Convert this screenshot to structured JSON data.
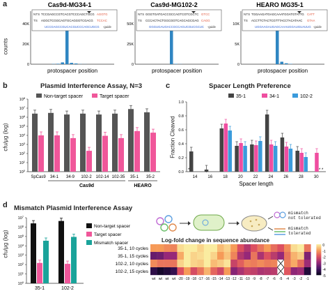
{
  "figure": {
    "panel_labels": [
      "a",
      "b",
      "c",
      "d"
    ],
    "panel_a": {
      "ylabel": "counts",
      "xlabel": "protospacer position",
      "subplots": [
        {
          "title": "Cas9d-MG34-1",
          "nts_label": "NTS",
          "ts_label": "TS",
          "nts_seq": "TCCGAGCCGTCACGTCCCAGCTGCG",
          "nts_tail": "AGGTG",
          "ts_seq": "AGGCTCGGCAGTGCAGGGTCGACG",
          "ts_tail": "TCCAC",
          "guide_seq": "UCCGAGCCGUCACGUCCCAGCUGCG",
          "guide_label": "-guide",
          "yticks": [
            "40K",
            "20K",
            "0"
          ]
        },
        {
          "title": "Cas9d-MG102-2",
          "nts_label": "NTS",
          "ts_label": "TS",
          "nts_seq": "GGGTGATGACCGCCAGTCGTCGCTC",
          "nts_tail": "GTCC",
          "ts_seq": "CCCACTACTGGCGGTCAGCAGCGAG",
          "ts_tail": "CAGG",
          "guide_seq": "GGGUGAUGACCGCCAGUCGUCGCUC",
          "guide_label": "-guide",
          "yticks": [
            "50K",
            "25K",
            "0"
          ]
        },
        {
          "title": "HEARO MG35-1",
          "nts_label": "NTS",
          "ts_label": "TS",
          "nts_seq": "TGGAAGATGAGCAAATGGATGTATTG",
          "nts_tail": "CATT",
          "ts_seq": "ACCTTCTACTCGTTTACCTACATAAC",
          "ts_tail": "GTAA",
          "guide_seq": "UGGAAGAUGAGCAAAUGGAUGUAUUG",
          "guide_label": "-guide",
          "yticks": [
            "10K",
            "5K",
            "0"
          ]
        }
      ]
    },
    "panel_b": {
      "title": "Plasmid Interference Assay, N=3",
      "ylabel": "cfu/μg (log)",
      "legend": [
        "Non-target spacer",
        "Target spacer"
      ],
      "groups": [
        "Cas9d",
        "HEARO"
      ]
    },
    "panel_c": {
      "title": "Spacer Length Preference",
      "ylabel": "Fraction Cleaved",
      "xlabel": "Spacer length",
      "legend": [
        "35-1",
        "34-1",
        "102-2"
      ]
    },
    "panel_d": {
      "title": "Mismatch Plasmid Interference Assay",
      "ylabel": "cfu/μg (log)",
      "legend": [
        "Non-target spacer",
        "Target spacer",
        "Mismatch spacer"
      ],
      "schematic_labels": {
        "mismatch_not_tolerated": "mismatch\nnot tolerated",
        "mismatch_tolerated": "mismatch\ntolerated"
      },
      "heatmap": {
        "title": "Log-fold change in sequence abundance",
        "rows": [
          "35-1, 10 cycles",
          "35-1, 15 cycles",
          "102-2, 10 cycles",
          "102-2, 15 cycles"
        ],
        "cols": [
          "wt",
          "wt",
          "wt",
          "wt",
          "-20",
          "-19",
          "-18",
          "-17",
          "-16",
          "-15",
          "-14",
          "-13",
          "-12",
          "-11",
          "-10",
          "-9",
          "-8",
          "-7",
          "-6",
          "-5",
          "-4",
          "-3",
          "-2",
          "-1"
        ],
        "colorbar_ticks": [
          "0",
          "-1",
          "-2",
          "-3",
          "-4",
          "-5"
        ]
      }
    }
  },
  "chart_data": [
    {
      "type": "bar",
      "title": "Cas9d-MG34-1",
      "xlabel": "protospacer position",
      "ylabel": "counts",
      "x": [
        1,
        2,
        3,
        4,
        5,
        6,
        7,
        8,
        9,
        10
      ],
      "values": [
        0,
        300,
        500,
        2000,
        46000,
        1500,
        800,
        200,
        100,
        0
      ],
      "ylim": [
        0,
        48000
      ]
    },
    {
      "type": "bar",
      "title": "Cas9d-MG102-2",
      "xlabel": "protospacer position",
      "ylabel": "counts",
      "x": [
        1,
        2,
        3,
        4,
        5,
        6,
        7,
        8,
        9,
        10
      ],
      "values": [
        0,
        0,
        0,
        0,
        60000,
        500,
        200,
        0,
        0,
        0
      ],
      "ylim": [
        0,
        60000
      ]
    },
    {
      "type": "bar",
      "title": "HEARO MG35-1",
      "xlabel": "protospacer position",
      "ylabel": "counts",
      "x": [
        1,
        2,
        3,
        4,
        5,
        6,
        7,
        8,
        9,
        10
      ],
      "values": [
        0,
        0,
        0,
        0,
        13000,
        800,
        300,
        100,
        0,
        0
      ],
      "ylim": [
        0,
        14000
      ]
    },
    {
      "type": "bar",
      "title": "Plasmid Interference Assay, N=3",
      "ylabel": "cfu/μg (log)",
      "ylog": true,
      "ylim": [
        1,
        100000000
      ],
      "yticks": [
        "10^8",
        "10^7",
        "10^6",
        "10^5",
        "10^4",
        "10^3",
        "10^2",
        "10^1",
        "10^0"
      ],
      "categories": [
        "SpCas9",
        "34-1",
        "34-9",
        "102-2",
        "102-14",
        "102-35",
        "35-1",
        "35-2"
      ],
      "series": [
        {
          "name": "Non-target spacer",
          "values": [
            2500000,
            3000000,
            2000000,
            2500000,
            2000000,
            2500000,
            8000000,
            3500000
          ]
        },
        {
          "name": "Target spacer",
          "values": [
            10000,
            10000,
            5000,
            200,
            9000,
            5000,
            30000,
            20000
          ]
        }
      ]
    },
    {
      "type": "bar",
      "title": "Spacer Length Preference",
      "xlabel": "Spacer length",
      "ylabel": "Fraction Cleaved",
      "ylim": [
        0,
        1.0
      ],
      "categories": [
        "14",
        "16",
        "18",
        "20",
        "22",
        "24",
        "26",
        "28",
        "30"
      ],
      "series": [
        {
          "name": "35-1",
          "values": [
            0.29,
            0.03,
            0.62,
            0.37,
            0.39,
            0.82,
            0.49,
            0.3,
            0.0
          ]
        },
        {
          "name": "34-1",
          "values": [
            0.0,
            0.0,
            0.69,
            0.41,
            0.38,
            0.39,
            0.36,
            0.27,
            0.27
          ]
        },
        {
          "name": "102-2",
          "values": [
            0.0,
            0.0,
            0.59,
            0.37,
            0.44,
            0.37,
            0.33,
            0.21,
            0.0
          ]
        }
      ]
    },
    {
      "type": "bar",
      "title": "Mismatch Plasmid Interference Assay",
      "ylabel": "cfu/μg (log)",
      "ylog": true,
      "ylim": [
        1,
        10000000
      ],
      "yticks": [
        "10^7",
        "10^6",
        "10^5",
        "10^4",
        "10^3",
        "10^2",
        "10^1",
        "10^0"
      ],
      "categories": [
        "35-1",
        "102-2"
      ],
      "series": [
        {
          "name": "Non-target spacer",
          "values": [
            2500000,
            4500000
          ]
        },
        {
          "name": "Target spacer",
          "values": [
            150,
            120
          ]
        },
        {
          "name": "Mismatch spacer",
          "values": [
            35000,
            90000
          ]
        }
      ]
    },
    {
      "type": "heatmap",
      "title": "Log-fold change in sequence abundance",
      "rows": [
        "35-1, 10 cycles",
        "35-1, 15 cycles",
        "102-2, 10 cycles",
        "102-2, 15 cycles"
      ],
      "cols": [
        "wt",
        "wt",
        "wt",
        "wt",
        "-20",
        "-19",
        "-18",
        "-17",
        "-16",
        "-15",
        "-14",
        "-13",
        "-12",
        "-11",
        "-10",
        "-9",
        "-8",
        "-7",
        "-6",
        "-5",
        "-4",
        "-3",
        "-2",
        "-1"
      ],
      "values": [
        [
          -1.0,
          -1.0,
          -1.2,
          -1.3,
          -0.2,
          0.0,
          0.1,
          -0.3,
          0.2,
          0.1,
          -0.6,
          -0.3,
          -1.0,
          -2.0,
          -2.6,
          -2.0,
          -1.5,
          -1.0,
          -1.6,
          -2.0,
          -1.2,
          -0.2,
          0.1,
          -1.5
        ],
        [
          -3.6,
          -3.5,
          -3.0,
          -3.0,
          -0.8,
          0.3,
          -0.3,
          -0.2,
          0.3,
          -0.3,
          -1.0,
          -0.5,
          -1.3,
          -2.6,
          -3.0,
          -1.5,
          -2.7,
          -2.0,
          -2.5,
          -3.0,
          -1.5,
          -0.7,
          -0.4,
          -3.3
        ],
        [
          -1.2,
          -1.5,
          -1.5,
          -1.5,
          -0.3,
          0.1,
          -0.3,
          -0.4,
          0.5,
          -0.6,
          -0.4,
          -0.1,
          -2.3,
          -1.8,
          -1.3,
          -1.4,
          -1.2,
          -1.4,
          -1.3,
          null,
          -1.4,
          -0.8,
          -1.6,
          -2.9
        ],
        [
          -4.4,
          -4.8,
          -4.6,
          -4.3,
          -2.0,
          -1.0,
          -2.1,
          -1.5,
          -0.7,
          -1.7,
          -2.2,
          -1.0,
          -3.2,
          -2.7,
          -2.3,
          -2.4,
          -2.7,
          -2.6,
          -2.5,
          null,
          -1.9,
          -3.1,
          -2.9,
          -4.6
        ]
      ],
      "colorbar": [
        0,
        -5
      ]
    }
  ]
}
